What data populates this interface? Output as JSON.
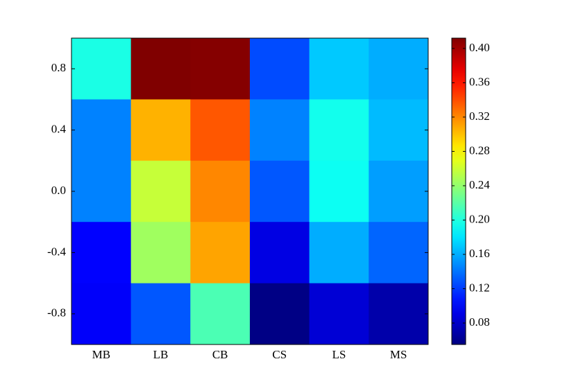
{
  "chart_data": {
    "type": "heatmap",
    "categories": [
      "MB",
      "LB",
      "CB",
      "CS",
      "LS",
      "MS"
    ],
    "y": [
      0.8,
      0.4,
      0.0,
      -0.4,
      -0.8
    ],
    "values": [
      [
        0.198,
        0.412,
        0.41,
        0.126,
        0.17,
        0.16
      ],
      [
        0.145,
        0.305,
        0.337,
        0.145,
        0.195,
        0.165
      ],
      [
        0.145,
        0.258,
        0.32,
        0.13,
        0.193,
        0.155
      ],
      [
        0.1,
        0.245,
        0.31,
        0.09,
        0.16,
        0.135
      ],
      [
        0.098,
        0.13,
        0.215,
        0.057,
        0.085,
        0.07
      ]
    ],
    "ylim": [
      -1,
      1
    ],
    "yticks": [
      0.8,
      0.4,
      {
        "value": 0,
        "label": "0.0"
      },
      -0.4,
      -0.8
    ],
    "colormap": "jet",
    "clim": [
      0.055,
      0.412
    ],
    "colorbar_ticks": [
      0.08,
      0.12,
      0.16,
      {
        "value": 0.2,
        "label": "0.20"
      },
      0.24,
      0.28,
      0.32,
      0.36,
      {
        "value": 0.4,
        "label": "0.40"
      }
    ]
  }
}
